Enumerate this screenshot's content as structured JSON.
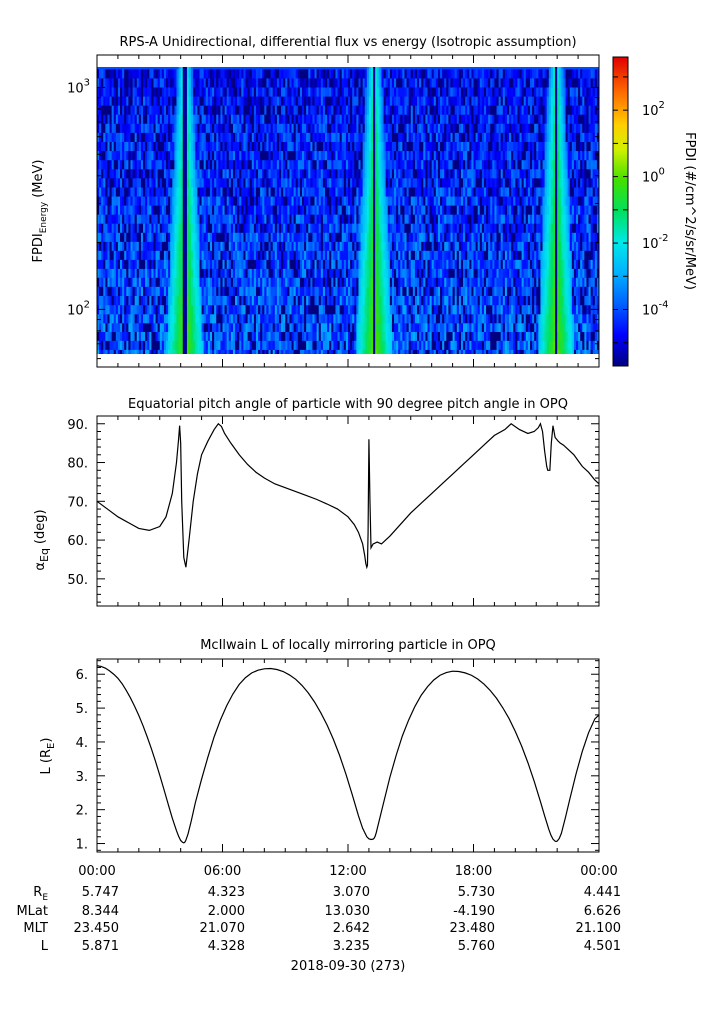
{
  "panels": [
    {
      "title": "RPS-A Unidirectional, differential flux vs energy (Isotropic assumption)",
      "ylabel_main": "FPDI",
      "ylabel_sub": "Energy",
      "ylabel_units": "(MeV)",
      "colorbar_label": "FPDI (#/cm^2/s/sr/MeV)"
    },
    {
      "title": "Equatorial pitch angle of particle with 90 degree pitch angle in OPQ",
      "ylabel_base": "α",
      "ylabel_sub": "Eq",
      "ylabel_units": "(deg)"
    },
    {
      "title": "McIlwain L of locally mirroring particle in OPQ",
      "ylabel_base": "L (R",
      "ylabel_sub": "E",
      "ylabel_end": ")"
    }
  ],
  "ephemeris": {
    "row_labels": [
      {
        "base": "R",
        "sub": "E"
      },
      {
        "base": "MLat",
        "sub": ""
      },
      {
        "base": "MLT",
        "sub": ""
      },
      {
        "base": "L",
        "sub": ""
      }
    ],
    "rows": [
      [
        "5.747",
        "4.323",
        "3.070",
        "5.730",
        "4.441"
      ],
      [
        "8.344",
        "2.000",
        "13.030",
        "-4.190",
        "6.626"
      ],
      [
        "23.450",
        "21.070",
        "2.642",
        "23.480",
        "21.100"
      ],
      [
        "5.871",
        "4.328",
        "3.235",
        "5.760",
        "4.501"
      ]
    ]
  },
  "date_label": "2018-09-30 (273)",
  "chart_data": [
    {
      "type": "heatmap",
      "title": "RPS-A Unidirectional, differential flux vs energy (Isotropic assumption)",
      "ylabel": "FPDI Energy (MeV)",
      "x_ticks": [
        "00:00",
        "06:00",
        "12:00",
        "18:00",
        "00:00"
      ],
      "xlim_hours": [
        0,
        24
      ],
      "ylim": [
        55,
        1400
      ],
      "y_scale": "log",
      "y_ticks": [
        {
          "value": 100,
          "base": "10",
          "exp": "2"
        },
        {
          "value": 1000,
          "base": "10",
          "exp": "3"
        }
      ],
      "energy_channels_mev": [
        58,
        63,
        69,
        76,
        83,
        91,
        100,
        110,
        121,
        133,
        146,
        160,
        176,
        193,
        212,
        233,
        256,
        281,
        309,
        339,
        373,
        410,
        450,
        495,
        544,
        598,
        657,
        722,
        793,
        871,
        957,
        1052,
        1156,
        1270
      ],
      "colorbar": {
        "scale": "log",
        "range_exp": [
          -5.7,
          3.6
        ],
        "ticks": [
          {
            "value_exp": -4,
            "base": "10",
            "exp": "-4"
          },
          {
            "value_exp": -2,
            "base": "10",
            "exp": "-2"
          },
          {
            "value_exp": 0,
            "base": "10",
            "exp": "0"
          },
          {
            "value_exp": 2,
            "base": "10",
            "exp": "2"
          }
        ],
        "label": "FPDI (#/cm^2/s/sr/MeV)"
      },
      "belt_passes_hours": [
        4.05,
        12.95,
        22.05
      ],
      "belt_centers_hours": [
        4.2,
        13.25,
        21.95
      ]
    },
    {
      "type": "line",
      "title": "Equatorial pitch angle of particle with 90 degree pitch angle in OPQ",
      "ylabel": "α Eq (deg)",
      "xlim_hours": [
        0,
        24
      ],
      "ylim": [
        43,
        92
      ],
      "y_ticks": [
        50,
        60,
        70,
        80,
        90
      ],
      "x": [
        0,
        0.5,
        1.0,
        1.5,
        2.0,
        2.5,
        3.0,
        3.3,
        3.6,
        3.8,
        3.9,
        3.95,
        4.0,
        4.05,
        4.15,
        4.25,
        4.4,
        4.6,
        4.8,
        5.0,
        5.3,
        5.6,
        5.8,
        5.95,
        6.1,
        6.4,
        6.8,
        7.2,
        7.6,
        8.0,
        8.5,
        9.0,
        9.5,
        10.0,
        10.5,
        11.0,
        11.5,
        12.0,
        12.3,
        12.5,
        12.7,
        12.8,
        12.85,
        12.9,
        12.93,
        12.96,
        13.0,
        13.05,
        13.1,
        13.2,
        13.4,
        13.6,
        14.0,
        14.5,
        15.0,
        15.5,
        16.0,
        16.5,
        17.0,
        17.5,
        18.0,
        18.5,
        19.0,
        19.5,
        19.8,
        20.2,
        20.6,
        20.9,
        21.1,
        21.2,
        21.3,
        21.4,
        21.5,
        21.55,
        21.65,
        21.72,
        21.8,
        21.9,
        22.05,
        22.15,
        22.3,
        22.5,
        22.8,
        23.0,
        23.2,
        23.5,
        23.8,
        24.0
      ],
      "y": [
        70.0,
        68.0,
        66.0,
        64.5,
        63.0,
        62.5,
        63.5,
        66.0,
        72.0,
        80.0,
        86.0,
        89.5,
        85.0,
        70.0,
        55.5,
        53.0,
        60.0,
        70.0,
        77.0,
        82.0,
        85.5,
        88.5,
        90.0,
        89.3,
        87.5,
        85.0,
        82.0,
        79.5,
        77.5,
        76.0,
        74.5,
        73.5,
        72.5,
        71.5,
        70.5,
        69.3,
        68.0,
        66.0,
        64.0,
        62.0,
        59.0,
        56.0,
        54.0,
        53.0,
        53.5,
        62.0,
        86.0,
        70.0,
        58.0,
        59.0,
        59.5,
        59.0,
        61.0,
        64.0,
        67.0,
        69.5,
        72.0,
        74.5,
        77.0,
        79.5,
        82.0,
        84.5,
        87.0,
        88.5,
        90.0,
        88.5,
        87.5,
        88.0,
        89.0,
        90.0,
        88.0,
        83.0,
        79.0,
        78.0,
        78.0,
        85.0,
        89.5,
        86.5,
        85.5,
        85.0,
        84.5,
        83.5,
        82.0,
        80.5,
        79.0,
        77.5,
        75.5,
        74.5
      ]
    },
    {
      "type": "line",
      "title": "McIlwain L of locally mirroring particle in OPQ",
      "ylabel": "L (RE)",
      "xlim_hours": [
        0,
        24
      ],
      "ylim": [
        0.75,
        6.45
      ],
      "y_ticks": [
        1,
        2,
        3,
        4,
        5,
        6
      ],
      "x_ticks": [
        "00:00",
        "06:00",
        "12:00",
        "18:00",
        "00:00"
      ],
      "x": [
        0,
        0.2,
        0.4,
        0.6,
        0.8,
        1.0,
        1.2,
        1.4,
        1.6,
        1.8,
        2.0,
        2.2,
        2.4,
        2.6,
        2.8,
        3.0,
        3.2,
        3.4,
        3.6,
        3.8,
        3.9,
        4.0,
        4.1,
        4.15,
        4.2,
        4.25,
        4.35,
        4.5,
        4.7,
        5.0,
        5.3,
        5.6,
        5.9,
        6.2,
        6.5,
        6.8,
        7.1,
        7.4,
        7.7,
        8.0,
        8.3,
        8.6,
        8.9,
        9.2,
        9.5,
        9.8,
        10.1,
        10.4,
        10.7,
        11.0,
        11.3,
        11.6,
        11.9,
        12.2,
        12.5,
        12.7,
        12.9,
        13.0,
        13.1,
        13.2,
        13.25,
        13.3,
        13.35,
        13.5,
        13.7,
        14.0,
        14.3,
        14.6,
        14.9,
        15.2,
        15.5,
        15.8,
        16.1,
        16.4,
        16.7,
        17.0,
        17.3,
        17.6,
        17.9,
        18.2,
        18.5,
        18.8,
        19.1,
        19.4,
        19.7,
        20.0,
        20.3,
        20.6,
        20.9,
        21.2,
        21.4,
        21.6,
        21.7,
        21.8,
        21.9,
        21.95,
        22.0,
        22.1,
        22.2,
        22.4,
        22.6,
        22.9,
        23.2,
        23.5,
        23.8,
        24.0
      ],
      "y": [
        6.25,
        6.23,
        6.18,
        6.1,
        6.0,
        5.88,
        5.72,
        5.52,
        5.3,
        5.05,
        4.78,
        4.48,
        4.15,
        3.8,
        3.42,
        3.02,
        2.6,
        2.17,
        1.75,
        1.38,
        1.22,
        1.09,
        1.03,
        1.02,
        1.04,
        1.1,
        1.28,
        1.65,
        2.2,
        2.9,
        3.55,
        4.15,
        4.65,
        5.07,
        5.42,
        5.7,
        5.9,
        6.04,
        6.12,
        6.16,
        6.17,
        6.14,
        6.08,
        5.98,
        5.85,
        5.67,
        5.45,
        5.18,
        4.86,
        4.5,
        4.08,
        3.6,
        3.05,
        2.45,
        1.82,
        1.45,
        1.2,
        1.14,
        1.12,
        1.13,
        1.16,
        1.22,
        1.32,
        1.7,
        2.2,
        2.95,
        3.6,
        4.18,
        4.65,
        5.05,
        5.38,
        5.63,
        5.83,
        5.97,
        6.05,
        6.09,
        6.08,
        6.04,
        5.97,
        5.86,
        5.71,
        5.52,
        5.29,
        5.01,
        4.69,
        4.31,
        3.88,
        3.39,
        2.84,
        2.24,
        1.82,
        1.42,
        1.25,
        1.13,
        1.07,
        1.06,
        1.07,
        1.15,
        1.3,
        1.78,
        2.3,
        3.05,
        3.72,
        4.27,
        4.68,
        4.8
      ]
    }
  ]
}
